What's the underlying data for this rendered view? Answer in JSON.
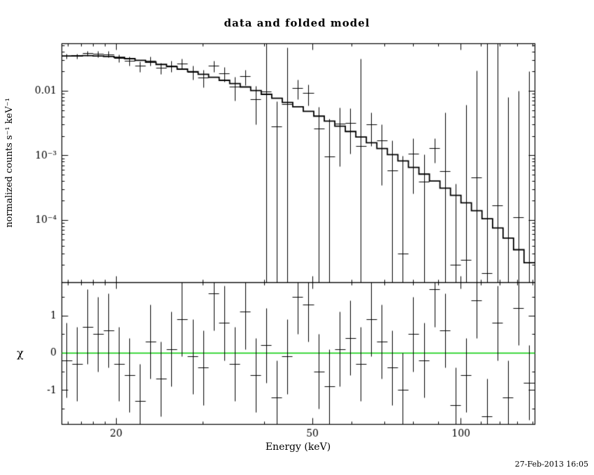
{
  "title": "data and folded model",
  "timestamp": "27-Feb-2013 16:05",
  "colors": {
    "foreground": "#000000",
    "background": "#ffffff",
    "model_line": "#000000",
    "zero_line": "#00cc00"
  },
  "chart_data": {
    "type": "scatter",
    "title": "data and folded model",
    "xlabel": "Energy (keV)",
    "xscale": "log",
    "xlim": [
      15.5,
      141
    ],
    "xticks": [
      20,
      50,
      100
    ],
    "panels": [
      {
        "name": "spectrum",
        "ylabel": "normalized counts s⁻¹ keV⁻¹",
        "yscale": "log",
        "ylim": [
          1.1e-05,
          0.055
        ],
        "yticks": [
          0.01,
          0.001,
          0.0001
        ],
        "ytick_labels": [
          "0.01",
          "10⁻³",
          "10⁻⁴"
        ],
        "bin_edges_keV": [
          15.5,
          16.28,
          17.1,
          17.96,
          18.86,
          19.81,
          20.81,
          21.85,
          22.95,
          24.1,
          25.31,
          26.59,
          27.92,
          29.33,
          30.8,
          32.35,
          33.98,
          35.69,
          37.48,
          39.37,
          41.35,
          43.43,
          45.61,
          47.9,
          50.31,
          52.84,
          55.5,
          58.29,
          61.22,
          64.3,
          67.53,
          70.93,
          74.5,
          78.25,
          82.18,
          86.32,
          90.66,
          95.22,
          100.0,
          105.0,
          110.3,
          115.9,
          121.7,
          127.8,
          134.2,
          141.0
        ],
        "model_counts": [
          0.035,
          0.0353,
          0.0354,
          0.0351,
          0.0344,
          0.0333,
          0.0318,
          0.03,
          0.028,
          0.0259,
          0.0239,
          0.0219,
          0.02,
          0.0182,
          0.0164,
          0.0147,
          0.0131,
          0.0116,
          0.0102,
          0.00893,
          0.00776,
          0.00669,
          0.00572,
          0.00486,
          0.0041,
          0.00344,
          0.00286,
          0.00237,
          0.00195,
          0.00159,
          0.00129,
          0.00104,
          0.00083,
          0.000659,
          0.000519,
          0.000406,
          0.000315,
          0.000243,
          0.000186,
          0.000141,
          0.000106,
          7.6e-05,
          5.3e-05,
          3.5e-05,
          2.2e-05
        ],
        "data_counts": [
          0.0344,
          0.0343,
          0.0379,
          0.037,
          0.0369,
          0.032,
          0.0291,
          0.0242,
          0.0294,
          0.0226,
          0.0244,
          0.0262,
          0.0195,
          0.0162,
          0.0243,
          0.0186,
          0.0117,
          0.0167,
          0.0075,
          0.0098,
          0.0028,
          0.0063,
          0.0111,
          0.0092,
          0.0026,
          0.00096,
          0.0031,
          0.0032,
          0.0014,
          0.003,
          0.0017,
          0.00058,
          3e-05,
          0.00105,
          0.00039,
          0.0013,
          0.00057,
          2e-05,
          2.4e-05,
          0.00045,
          1.5e-05,
          0.00017,
          1e-05,
          0.00011,
          8e-06
        ],
        "data_err": [
          0.00315,
          0.00318,
          0.00354,
          0.00386,
          0.00413,
          0.00433,
          0.00445,
          0.0045,
          0.00476,
          0.00466,
          0.00478,
          0.00482,
          0.0048,
          0.00491,
          0.00492,
          0.00485,
          0.00472,
          0.00464,
          0.00449,
          0.05,
          0.00411,
          0.04,
          0.0036,
          0.0033,
          0.00303,
          0.00275,
          0.00243,
          0.00213,
          0.03,
          0.00159,
          0.00135,
          0.00114,
          0.000955,
          0.000791,
          0.000649,
          0.000528,
          0.004,
          0.00034,
          0.006,
          0.02,
          0.08,
          0.06,
          0.008,
          0.01,
          0.02
        ]
      },
      {
        "name": "residuals",
        "ylabel": "χ",
        "yscale": "linear",
        "ylim": [
          -1.9,
          1.9
        ],
        "yticks": [
          -1,
          0,
          1
        ],
        "ytick_labels": [
          "-1",
          "0",
          "1"
        ],
        "chi": [
          -0.2,
          -0.3,
          0.7,
          0.5,
          0.6,
          -0.3,
          -0.6,
          -1.3,
          0.3,
          -0.7,
          0.1,
          0.9,
          -0.1,
          -0.4,
          1.6,
          0.8,
          -0.3,
          1.1,
          -0.6,
          0.2,
          -1.2,
          -0.1,
          1.5,
          1.3,
          -0.5,
          -0.9,
          0.1,
          0.4,
          -0.3,
          0.9,
          0.3,
          -0.4,
          -1.0,
          0.5,
          -0.2,
          1.7,
          0.6,
          -1.4,
          -0.6,
          1.4,
          -1.7,
          0.8,
          -1.2,
          1.2,
          -0.8
        ],
        "chi_err": 1,
        "zero_line": 0
      }
    ]
  }
}
